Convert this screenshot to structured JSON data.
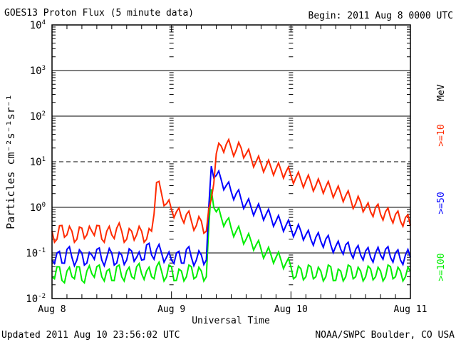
{
  "chart_data": {
    "type": "line",
    "title": "GOES13 Proton Flux (5 minute data)",
    "begin": "Begin: 2011 Aug 8 0000 UTC",
    "xlabel": "Universal Time",
    "ylabel": "Particles cm⁻²s⁻¹sr⁻¹",
    "yscale": "log",
    "ylim": [
      0.01,
      10000
    ],
    "y_ticks": [
      {
        "base": "10",
        "exp": "4",
        "value": 10000
      },
      {
        "base": "10",
        "exp": "3",
        "value": 1000
      },
      {
        "base": "10",
        "exp": "2",
        "value": 100
      },
      {
        "base": "10",
        "exp": "1",
        "value": 10
      },
      {
        "base": "10",
        "exp": "0",
        "value": 1
      },
      {
        "base": "10",
        "exp": "-1",
        "value": 0.1
      },
      {
        "base": "10",
        "exp": "-2",
        "value": 0.01
      }
    ],
    "x_unit": "hours since 2011 Aug 8 00:00 UTC",
    "xlim": [
      0,
      72
    ],
    "x_ticks": [
      {
        "label": "Aug 8",
        "value": 0
      },
      {
        "label": "Aug 9",
        "value": 24
      },
      {
        "label": "Aug 10",
        "value": 48
      },
      {
        "label": "Aug 11",
        "value": 72
      }
    ],
    "grid": "solid at 10^3, 10^2, 10^0, 10^-1; dashed at 10^1",
    "legend_unit": "MeV",
    "series": [
      {
        "name": ">=10",
        "color": "#ff2a00",
        "values": [
          0.3,
          0.2,
          0.4,
          0.25,
          0.3,
          0.2,
          0.35,
          0.25,
          0.3,
          0.4,
          0.2,
          0.3,
          0.25,
          0.35,
          0.3,
          0.2,
          0.3,
          0.25,
          0.3,
          0.2,
          0.3,
          3.5,
          2,
          1.2,
          0.9,
          0.8,
          0.6,
          0.7,
          0.5,
          0.4,
          0.5,
          0.3,
          1.5,
          15,
          22,
          24,
          20,
          18,
          20,
          15,
          12,
          10,
          9,
          8,
          7.5,
          7,
          6.5,
          6,
          5,
          4.5,
          4,
          3.8,
          3.5,
          3,
          3,
          2.8,
          2.5,
          2.2,
          2,
          1.8,
          1.5,
          1.2,
          1.3,
          1,
          0.8,
          1,
          0.7,
          0.8,
          0.6,
          0.7,
          0.5,
          0.6,
          0.4
        ]
      },
      {
        "name": ">=50",
        "color": "#0000ff",
        "values": [
          0.07,
          0.1,
          0.06,
          0.12,
          0.08,
          0.07,
          0.1,
          0.06,
          0.09,
          0.12,
          0.07,
          0.08,
          0.1,
          0.06,
          0.09,
          0.07,
          0.11,
          0.08,
          0.07,
          0.15,
          0.09,
          0.12,
          0.1,
          0.08,
          0.07,
          0.1,
          0.06,
          0.12,
          0.08,
          0.07,
          0.09,
          0.07,
          8,
          5,
          4,
          3,
          2.2,
          2,
          1.5,
          1.2,
          1,
          0.9,
          0.8,
          0.7,
          0.6,
          0.5,
          0.45,
          0.4,
          0.35,
          0.3,
          0.3,
          0.25,
          0.2,
          0.22,
          0.18,
          0.2,
          0.15,
          0.14,
          0.12,
          0.15,
          0.1,
          0.12,
          0.09,
          0.11,
          0.08,
          0.1,
          0.09,
          0.12,
          0.08,
          0.1,
          0.07,
          0.09,
          0.08
        ]
      },
      {
        "name": ">=100",
        "color": "#00ee00",
        "values": [
          0.03,
          0.05,
          0.025,
          0.04,
          0.03,
          0.05,
          0.025,
          0.04,
          0.035,
          0.05,
          0.03,
          0.04,
          0.025,
          0.05,
          0.03,
          0.04,
          0.03,
          0.05,
          0.035,
          0.04,
          0.03,
          0.05,
          0.04,
          0.03,
          0.05,
          0.025,
          0.04,
          0.03,
          0.05,
          0.03,
          0.04,
          0.03,
          2.5,
          0.8,
          0.6,
          0.5,
          0.35,
          0.3,
          0.25,
          0.2,
          0.18,
          0.15,
          0.12,
          0.1,
          0.09,
          0.08,
          0.07,
          0.06,
          0.05,
          0.03,
          0.045,
          0.03,
          0.05,
          0.03,
          0.04,
          0.03,
          0.05,
          0.025,
          0.04,
          0.03,
          0.05,
          0.03,
          0.04,
          0.03,
          0.045,
          0.03,
          0.04,
          0.03,
          0.05,
          0.03,
          0.04,
          0.03,
          0.04
        ]
      }
    ]
  },
  "footer": {
    "updated": "Updated 2011 Aug 10 23:56:02 UTC",
    "credit": "NOAA/SWPC Boulder, CO USA"
  }
}
